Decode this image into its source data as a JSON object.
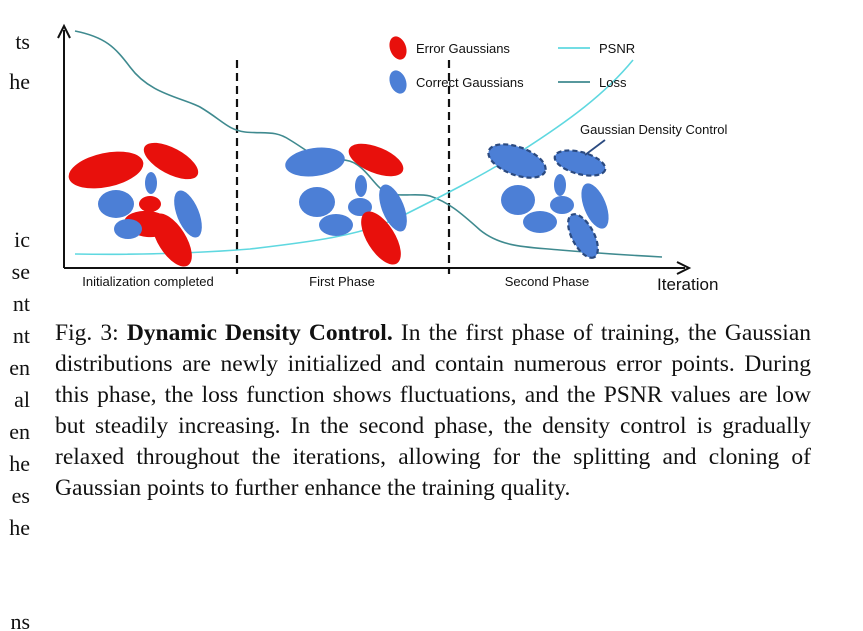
{
  "left_column_fragment": [
    "ts",
    "he",
    "ic",
    "se",
    "nt",
    "nt",
    "en",
    "al",
    "en",
    "he",
    "es",
    "he",
    "ns"
  ],
  "figure": {
    "legend": {
      "error": "Error Gaussians",
      "correct": "Correct Gaussians",
      "psnr": "PSNR",
      "loss": "Loss"
    },
    "annotation": "Gaussian Density Control",
    "phases": [
      "Initialization completed",
      "First Phase",
      "Second Phase"
    ],
    "x_axis_label": "Iteration",
    "colors": {
      "error": "#e8100c",
      "correct": "#4c7fd6",
      "psnr": "#5fd8e0",
      "loss": "#3f8a8f",
      "dashed_outline": "#2b4a80"
    }
  },
  "caption": {
    "fig_label": "Fig. 3:",
    "title": "Dynamic Density Control.",
    "body": "In the first phase of training, the Gaussian distributions are newly initialized and contain numerous error points. During this phase, the loss function shows fluctuations, and the PSNR values are low but steadily increasing. In the second phase, the density control is gradually relaxed throughout the iterations, allowing for the splitting and cloning of Gaussian points to further enhance the training quality."
  }
}
